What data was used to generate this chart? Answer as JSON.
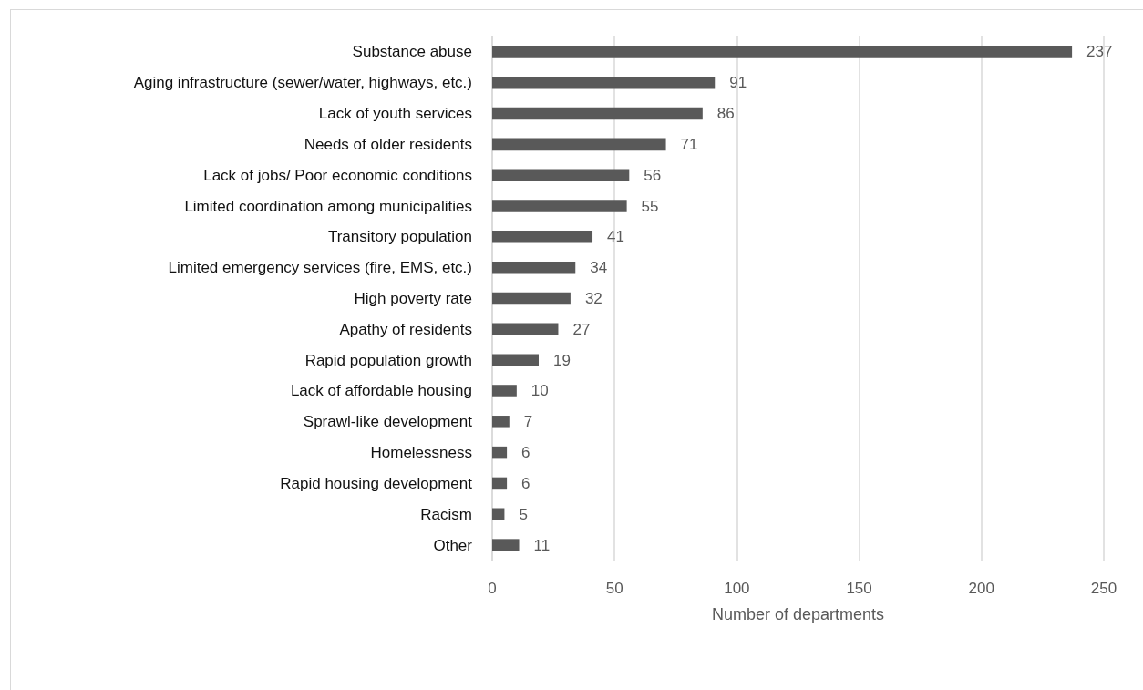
{
  "chart_data": {
    "type": "bar",
    "orientation": "horizontal",
    "xlabel": "Number of departments",
    "categories": [
      "Substance abuse",
      "Aging infrastructure (sewer/water, highways, etc.)",
      "Lack of youth services",
      "Needs of older residents",
      "Lack of jobs/ Poor economic conditions",
      "Limited coordination among municipalities",
      "Transitory population",
      "Limited emergency services (fire, EMS, etc.)",
      "High poverty rate",
      "Apathy of residents",
      "Rapid population growth",
      "Lack of affordable housing",
      "Sprawl-like development",
      "Homelessness",
      "Rapid housing development",
      "Racism",
      "Other"
    ],
    "values": [
      237,
      91,
      86,
      71,
      56,
      55,
      41,
      34,
      32,
      27,
      19,
      10,
      7,
      6,
      6,
      5,
      11
    ],
    "color": "#595959",
    "xlim": [
      0,
      250
    ],
    "xticks": [
      0,
      50,
      100,
      150,
      200,
      250
    ],
    "grid": "x",
    "data_labels": true
  }
}
